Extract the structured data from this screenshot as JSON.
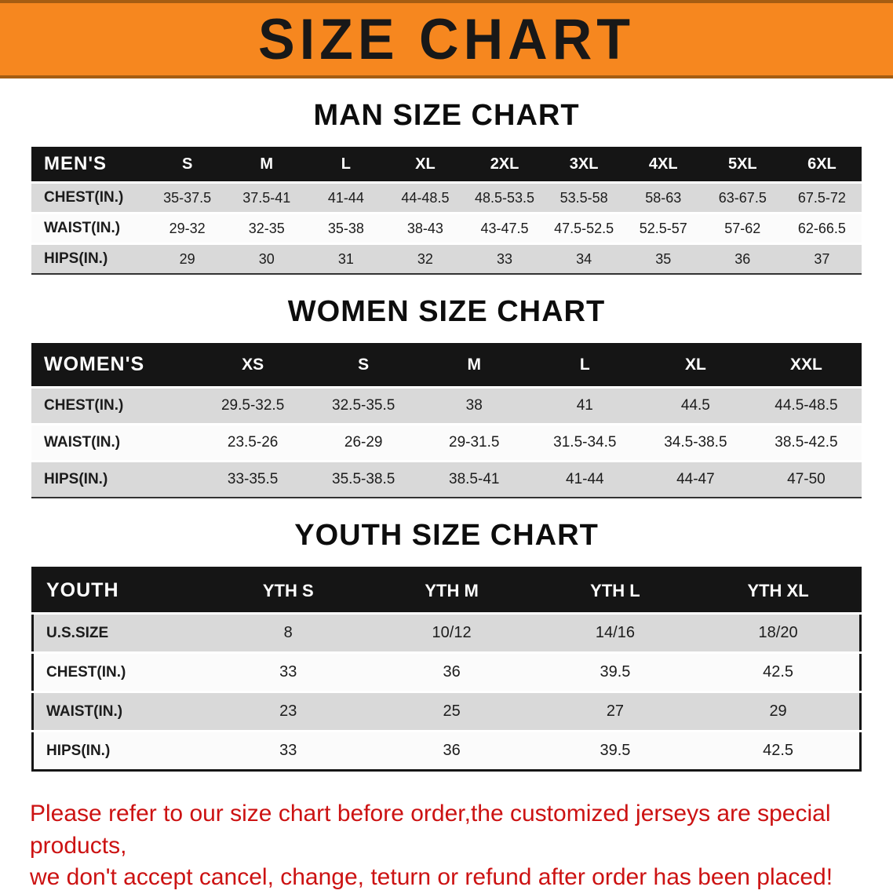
{
  "banner": {
    "title": "SIZE CHART"
  },
  "colors": {
    "banner_bg": "#f6871f",
    "banner_edge": "#a55d12",
    "header_bg": "#151515",
    "row_gray": "#d9d9d9",
    "row_light": "#fbfbfb",
    "footer_red": "#cc1212"
  },
  "sections": [
    {
      "id": "men",
      "heading": "MAN SIZE CHART",
      "columns": [
        "MEN'S",
        "S",
        "M",
        "L",
        "XL",
        "2XL",
        "3XL",
        "4XL",
        "5XL",
        "6XL"
      ],
      "rows": [
        [
          "CHEST(IN.)",
          "35-37.5",
          "37.5-41",
          "41-44",
          "44-48.5",
          "48.5-53.5",
          "53.5-58",
          "58-63",
          "63-67.5",
          "67.5-72"
        ],
        [
          "WAIST(IN.)",
          "29-32",
          "32-35",
          "35-38",
          "38-43",
          "43-47.5",
          "47.5-52.5",
          "52.5-57",
          "57-62",
          "62-66.5"
        ],
        [
          "HIPS(IN.)",
          "29",
          "30",
          "31",
          "32",
          "33",
          "34",
          "35",
          "36",
          "37"
        ]
      ]
    },
    {
      "id": "women",
      "heading": "WOMEN SIZE CHART",
      "columns": [
        "WOMEN'S",
        "XS",
        "S",
        "M",
        "L",
        "XL",
        "XXL"
      ],
      "rows": [
        [
          "CHEST(IN.)",
          "29.5-32.5",
          "32.5-35.5",
          "38",
          "41",
          "44.5",
          "44.5-48.5"
        ],
        [
          "WAIST(IN.)",
          "23.5-26",
          "26-29",
          "29-31.5",
          "31.5-34.5",
          "34.5-38.5",
          "38.5-42.5"
        ],
        [
          "HIPS(IN.)",
          "33-35.5",
          "35.5-38.5",
          "38.5-41",
          "41-44",
          "44-47",
          "47-50"
        ]
      ]
    },
    {
      "id": "youth",
      "heading": "YOUTH SIZE CHART",
      "columns": [
        "YOUTH",
        "YTH S",
        "YTH M",
        "YTH L",
        "YTH XL"
      ],
      "rows": [
        [
          "U.S.SIZE",
          "8",
          "10/12",
          "14/16",
          "18/20"
        ],
        [
          "CHEST(IN.)",
          "33",
          "36",
          "39.5",
          "42.5"
        ],
        [
          "WAIST(IN.)",
          "23",
          "25",
          "27",
          "29"
        ],
        [
          "HIPS(IN.)",
          "33",
          "36",
          "39.5",
          "42.5"
        ]
      ]
    }
  ],
  "footer": {
    "line1": "Please refer to our size chart before order,the customized jerseys are special products,",
    "line2": "we don't accept cancel, change, teturn or refund after order has been placed!"
  }
}
